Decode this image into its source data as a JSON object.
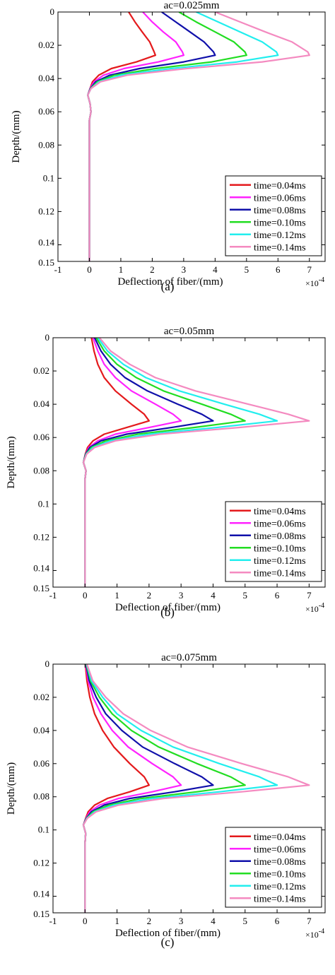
{
  "chart_data": [
    {
      "type": "line",
      "title": "ac=0.025mm",
      "xlabel": "Deflection of fiber/(mm)",
      "ylabel": "Depth/(mm)",
      "x_multiplier": "×10",
      "x_multiplier_exp": "-4",
      "xlim": [
        -1,
        7.5
      ],
      "ylim": [
        0,
        0.15
      ],
      "xticks": [
        "-1",
        "0",
        "1",
        "2",
        "3",
        "4",
        "5",
        "6",
        "7"
      ],
      "yticks": [
        "0",
        "0.02",
        "0.04",
        "0.06",
        "0.08",
        "0.1",
        "0.12",
        "0.14",
        "0.15"
      ],
      "grid": false,
      "legend_position": "bottom-right",
      "caption": "(a)",
      "series": [
        {
          "name": "time=0.04ms",
          "color": "#e41a1c",
          "depth": [
            0,
            0.006,
            0.012,
            0.018,
            0.024,
            0.026,
            0.03,
            0.034,
            0.038,
            0.042,
            0.046,
            0.05,
            0.055,
            0.06,
            0.065,
            0.15
          ],
          "deflection": [
            1.25,
            1.45,
            1.68,
            1.92,
            2.06,
            2.1,
            1.5,
            0.7,
            0.3,
            0.1,
            0.02,
            -0.05,
            0.02,
            0.05,
            0,
            0
          ]
        },
        {
          "name": "time=0.06ms",
          "color": "#ff22ff",
          "depth": [
            0,
            0.006,
            0.012,
            0.018,
            0.024,
            0.026,
            0.03,
            0.034,
            0.038,
            0.042,
            0.046,
            0.05,
            0.055,
            0.06,
            0.065,
            0.15
          ],
          "deflection": [
            1.7,
            2.0,
            2.35,
            2.75,
            2.96,
            3.0,
            2.2,
            1.1,
            0.45,
            0.15,
            0.02,
            -0.05,
            0.02,
            0.05,
            0,
            0
          ]
        },
        {
          "name": "time=0.08ms",
          "color": "#1010aa",
          "depth": [
            0,
            0.006,
            0.012,
            0.018,
            0.024,
            0.026,
            0.03,
            0.034,
            0.038,
            0.042,
            0.046,
            0.05,
            0.055,
            0.06,
            0.065,
            0.15
          ],
          "deflection": [
            2.3,
            2.75,
            3.2,
            3.65,
            3.95,
            4.0,
            3.0,
            1.6,
            0.65,
            0.2,
            0.03,
            -0.05,
            0.02,
            0.05,
            0,
            0
          ]
        },
        {
          "name": "time=0.10ms",
          "color": "#22dd22",
          "depth": [
            0,
            0.006,
            0.012,
            0.018,
            0.024,
            0.026,
            0.03,
            0.034,
            0.038,
            0.042,
            0.046,
            0.05,
            0.055,
            0.06,
            0.065,
            0.15
          ],
          "deflection": [
            2.85,
            3.4,
            4.0,
            4.6,
            4.95,
            5.0,
            3.9,
            2.1,
            0.8,
            0.25,
            0.04,
            -0.05,
            0.02,
            0.05,
            0,
            0
          ]
        },
        {
          "name": "time=0.12ms",
          "color": "#22eeee",
          "depth": [
            0,
            0.006,
            0.012,
            0.018,
            0.024,
            0.026,
            0.03,
            0.034,
            0.038,
            0.042,
            0.046,
            0.05,
            0.055,
            0.06,
            0.065,
            0.15
          ],
          "deflection": [
            3.4,
            4.1,
            4.8,
            5.5,
            5.95,
            6.0,
            4.7,
            2.6,
            1.0,
            0.3,
            0.05,
            -0.05,
            0.02,
            0.05,
            0,
            0
          ]
        },
        {
          "name": "time=0.14ms",
          "color": "#f48ac0",
          "depth": [
            0,
            0.006,
            0.012,
            0.018,
            0.024,
            0.026,
            0.03,
            0.034,
            0.038,
            0.042,
            0.046,
            0.05,
            0.055,
            0.06,
            0.065,
            0.15
          ],
          "deflection": [
            4.0,
            4.8,
            5.6,
            6.45,
            6.95,
            7.0,
            5.5,
            3.1,
            1.2,
            0.35,
            0.05,
            -0.05,
            0.02,
            0.05,
            0,
            0
          ]
        }
      ]
    },
    {
      "type": "line",
      "title": "ac=0.05mm",
      "xlabel": "Deflection of fiber/(mm)",
      "ylabel": "Depth/(mm)",
      "x_multiplier": "×10",
      "x_multiplier_exp": "-4",
      "xlim": [
        -1,
        7.5
      ],
      "ylim": [
        0,
        0.15
      ],
      "xticks": [
        "-1",
        "0",
        "1",
        "2",
        "3",
        "4",
        "5",
        "6",
        "7"
      ],
      "yticks": [
        "0",
        "0.02",
        "0.04",
        "0.06",
        "0.08",
        "0.1",
        "0.12",
        "0.14",
        "0.15"
      ],
      "grid": false,
      "legend_position": "bottom-right",
      "caption": "(b)",
      "series": [
        {
          "name": "time=0.04ms",
          "color": "#e41a1c",
          "depth": [
            0,
            0.008,
            0.016,
            0.024,
            0.032,
            0.04,
            0.046,
            0.05,
            0.054,
            0.058,
            0.062,
            0.066,
            0.07,
            0.075,
            0.08,
            0.085,
            0.15
          ],
          "deflection": [
            0.2,
            0.28,
            0.4,
            0.6,
            0.95,
            1.45,
            1.85,
            2.0,
            1.3,
            0.6,
            0.25,
            0.08,
            0.01,
            -0.05,
            0.03,
            0,
            0
          ]
        },
        {
          "name": "time=0.06ms",
          "color": "#ff22ff",
          "depth": [
            0,
            0.008,
            0.016,
            0.024,
            0.032,
            0.04,
            0.046,
            0.05,
            0.054,
            0.058,
            0.062,
            0.066,
            0.07,
            0.075,
            0.08,
            0.085,
            0.15
          ],
          "deflection": [
            0.25,
            0.4,
            0.6,
            0.95,
            1.45,
            2.2,
            2.75,
            3.0,
            2.0,
            0.95,
            0.4,
            0.12,
            0.02,
            -0.05,
            0.03,
            0,
            0
          ]
        },
        {
          "name": "time=0.08ms",
          "color": "#1010aa",
          "depth": [
            0,
            0.008,
            0.016,
            0.024,
            0.032,
            0.04,
            0.046,
            0.05,
            0.054,
            0.058,
            0.062,
            0.066,
            0.07,
            0.075,
            0.08,
            0.085,
            0.15
          ],
          "deflection": [
            0.3,
            0.5,
            0.8,
            1.25,
            1.95,
            2.9,
            3.65,
            4.0,
            2.7,
            1.3,
            0.5,
            0.15,
            0.02,
            -0.05,
            0.03,
            0,
            0
          ]
        },
        {
          "name": "time=0.10ms",
          "color": "#22dd22",
          "depth": [
            0,
            0.008,
            0.016,
            0.024,
            0.032,
            0.04,
            0.046,
            0.05,
            0.054,
            0.058,
            0.062,
            0.066,
            0.07,
            0.075,
            0.08,
            0.085,
            0.15
          ],
          "deflection": [
            0.35,
            0.6,
            1.0,
            1.6,
            2.45,
            3.65,
            4.55,
            5.0,
            3.4,
            1.65,
            0.65,
            0.2,
            0.03,
            -0.05,
            0.03,
            0,
            0
          ]
        },
        {
          "name": "time=0.12ms",
          "color": "#22eeee",
          "depth": [
            0,
            0.008,
            0.016,
            0.024,
            0.032,
            0.04,
            0.046,
            0.05,
            0.054,
            0.058,
            0.062,
            0.066,
            0.07,
            0.075,
            0.08,
            0.085,
            0.15
          ],
          "deflection": [
            0.4,
            0.7,
            1.2,
            1.9,
            2.95,
            4.35,
            5.45,
            6.0,
            4.1,
            2.0,
            0.8,
            0.25,
            0.04,
            -0.05,
            0.03,
            0,
            0
          ]
        },
        {
          "name": "time=0.14ms",
          "color": "#f48ac0",
          "depth": [
            0,
            0.008,
            0.016,
            0.024,
            0.032,
            0.04,
            0.046,
            0.05,
            0.054,
            0.058,
            0.062,
            0.066,
            0.07,
            0.075,
            0.08,
            0.085,
            0.15
          ],
          "deflection": [
            0.45,
            0.8,
            1.4,
            2.2,
            3.45,
            5.1,
            6.35,
            7.0,
            4.8,
            2.35,
            0.95,
            0.3,
            0.05,
            -0.05,
            0.03,
            0,
            0
          ]
        }
      ]
    },
    {
      "type": "line",
      "title": "ac=0.075mm",
      "xlabel": "Deflection of fiber/(mm)",
      "ylabel": "Depth/(mm)",
      "x_multiplier": "×10",
      "x_multiplier_exp": "-4",
      "xlim": [
        -1,
        7.5
      ],
      "ylim": [
        0,
        0.15
      ],
      "xticks": [
        "-1",
        "0",
        "1",
        "2",
        "3",
        "4",
        "5",
        "6",
        "7"
      ],
      "yticks": [
        "0",
        "0.02",
        "0.04",
        "0.06",
        "0.08",
        "0.1",
        "0.12",
        "0.14",
        "0.15"
      ],
      "grid": false,
      "legend_position": "bottom-right",
      "caption": "(c)",
      "series": [
        {
          "name": "time=0.04ms",
          "color": "#e41a1c",
          "depth": [
            0,
            0.01,
            0.02,
            0.03,
            0.04,
            0.05,
            0.06,
            0.068,
            0.073,
            0.077,
            0.081,
            0.085,
            0.089,
            0.093,
            0.097,
            0.102,
            0.108,
            0.15
          ],
          "deflection": [
            0.01,
            0.06,
            0.15,
            0.3,
            0.55,
            0.9,
            1.4,
            1.85,
            2.0,
            1.4,
            0.7,
            0.3,
            0.1,
            0.02,
            -0.05,
            0.02,
            0,
            0
          ]
        },
        {
          "name": "time=0.06ms",
          "color": "#ff22ff",
          "depth": [
            0,
            0.01,
            0.02,
            0.03,
            0.04,
            0.05,
            0.06,
            0.068,
            0.073,
            0.077,
            0.081,
            0.085,
            0.089,
            0.093,
            0.097,
            0.102,
            0.108,
            0.15
          ],
          "deflection": [
            0.02,
            0.1,
            0.25,
            0.5,
            0.85,
            1.35,
            2.1,
            2.75,
            3.0,
            2.1,
            1.05,
            0.45,
            0.15,
            0.03,
            -0.05,
            0.02,
            0,
            0
          ]
        },
        {
          "name": "time=0.08ms",
          "color": "#1010aa",
          "depth": [
            0,
            0.01,
            0.02,
            0.03,
            0.04,
            0.05,
            0.06,
            0.068,
            0.073,
            0.077,
            0.081,
            0.085,
            0.089,
            0.093,
            0.097,
            0.102,
            0.108,
            0.15
          ],
          "deflection": [
            0.03,
            0.13,
            0.35,
            0.65,
            1.15,
            1.8,
            2.8,
            3.65,
            4.0,
            2.8,
            1.4,
            0.6,
            0.2,
            0.04,
            -0.05,
            0.02,
            0,
            0
          ]
        },
        {
          "name": "time=0.10ms",
          "color": "#22dd22",
          "depth": [
            0,
            0.01,
            0.02,
            0.03,
            0.04,
            0.05,
            0.06,
            0.068,
            0.073,
            0.077,
            0.081,
            0.085,
            0.089,
            0.093,
            0.097,
            0.102,
            0.108,
            0.15
          ],
          "deflection": [
            0.04,
            0.17,
            0.45,
            0.85,
            1.45,
            2.3,
            3.5,
            4.55,
            5.0,
            3.5,
            1.75,
            0.75,
            0.25,
            0.05,
            -0.05,
            0.02,
            0,
            0
          ]
        },
        {
          "name": "time=0.12ms",
          "color": "#22eeee",
          "depth": [
            0,
            0.01,
            0.02,
            0.03,
            0.04,
            0.05,
            0.06,
            0.068,
            0.073,
            0.077,
            0.081,
            0.085,
            0.089,
            0.093,
            0.097,
            0.102,
            0.108,
            0.15
          ],
          "deflection": [
            0.05,
            0.2,
            0.55,
            1.0,
            1.75,
            2.75,
            4.2,
            5.45,
            6.0,
            4.2,
            2.1,
            0.9,
            0.3,
            0.06,
            -0.05,
            0.02,
            0,
            0
          ]
        },
        {
          "name": "time=0.14ms",
          "color": "#f48ac0",
          "depth": [
            0,
            0.01,
            0.02,
            0.03,
            0.04,
            0.05,
            0.06,
            0.068,
            0.073,
            0.077,
            0.081,
            0.085,
            0.089,
            0.093,
            0.097,
            0.102,
            0.108,
            0.15
          ],
          "deflection": [
            0.06,
            0.24,
            0.65,
            1.2,
            2.05,
            3.2,
            4.9,
            6.35,
            7.0,
            4.9,
            2.45,
            1.05,
            0.35,
            0.07,
            -0.05,
            0.02,
            0,
            0
          ]
        }
      ]
    }
  ]
}
